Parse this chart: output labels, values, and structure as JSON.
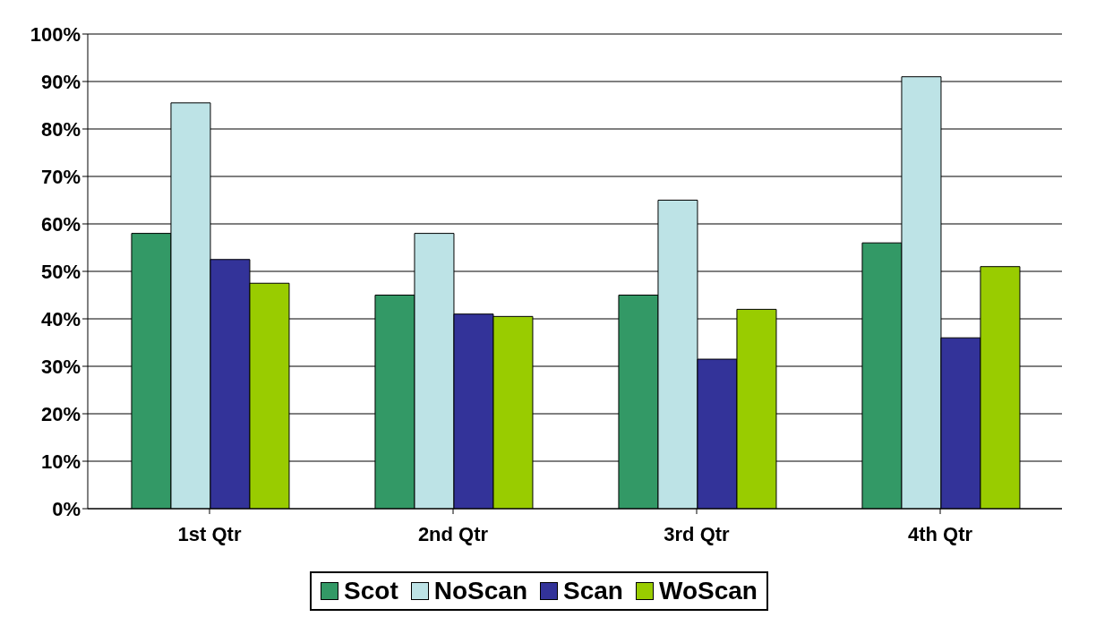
{
  "chart_data": {
    "type": "bar",
    "categories": [
      "1st Qtr",
      "2nd Qtr",
      "3rd Qtr",
      "4th Qtr"
    ],
    "series": [
      {
        "name": "Scot",
        "color": "#339966",
        "values": [
          58,
          45,
          45,
          56
        ]
      },
      {
        "name": "NoScan",
        "color": "#bde3e6",
        "values": [
          85.5,
          58,
          65,
          91
        ]
      },
      {
        "name": "Scan",
        "color": "#333399",
        "values": [
          52.5,
          41,
          31.5,
          36
        ]
      },
      {
        "name": "WoScan",
        "color": "#99cc00",
        "values": [
          47.5,
          40.5,
          42,
          51
        ]
      }
    ],
    "ylim": [
      0,
      100
    ],
    "yticks": [
      {
        "value": 0,
        "label": "0%"
      },
      {
        "value": 10,
        "label": "10%"
      },
      {
        "value": 20,
        "label": "20%"
      },
      {
        "value": 30,
        "label": "30%"
      },
      {
        "value": 40,
        "label": "40%"
      },
      {
        "value": 50,
        "label": "50%"
      },
      {
        "value": 60,
        "label": "60%"
      },
      {
        "value": 70,
        "label": "70%"
      },
      {
        "value": 80,
        "label": "80%"
      },
      {
        "value": 90,
        "label": "90%"
      },
      {
        "value": 100,
        "label": "100%"
      }
    ],
    "grid": "y",
    "legend": "bottom"
  }
}
